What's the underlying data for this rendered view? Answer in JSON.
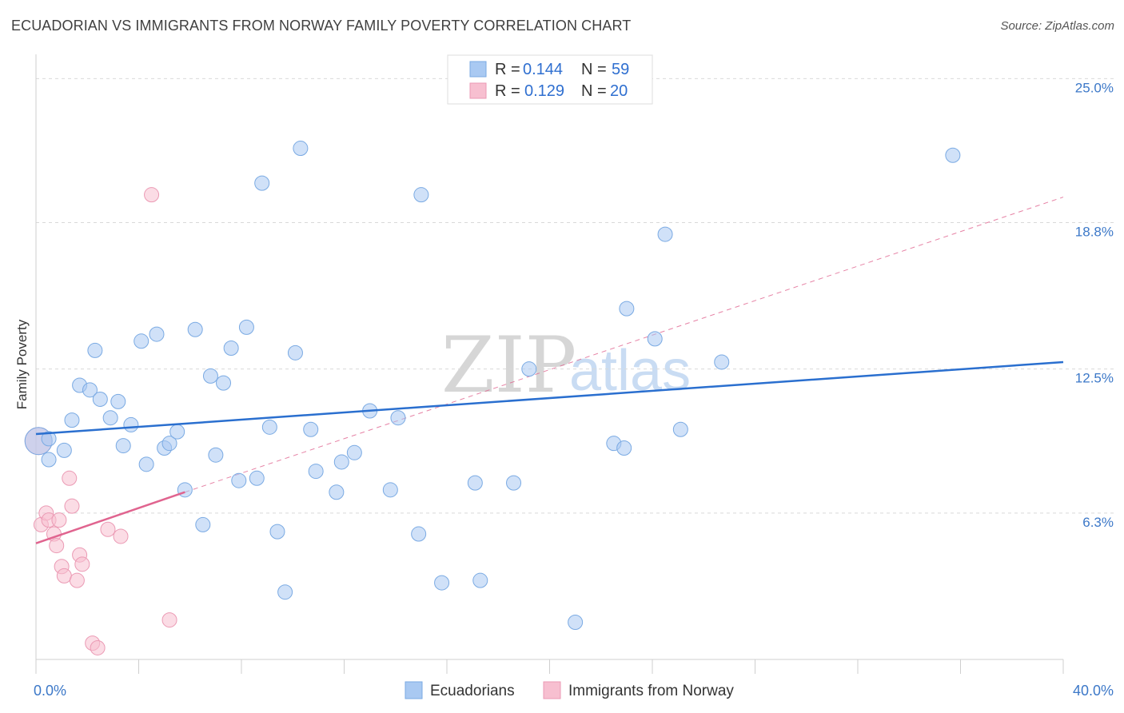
{
  "header": {
    "title": "ECUADORIAN VS IMMIGRANTS FROM NORWAY FAMILY POVERTY CORRELATION CHART",
    "source": "Source: ZipAtlas.com"
  },
  "watermark": {
    "part1": "ZIP",
    "part2": "atlas"
  },
  "legend": {
    "rows": [
      {
        "r_label": "R =",
        "r_value": "0.144",
        "n_label": "N =",
        "n_value": "59",
        "color": "#a9c9f2"
      },
      {
        "r_label": "R =",
        "r_value": "0.129",
        "n_label": "N =",
        "n_value": "20",
        "color": "#f7bfd0"
      }
    ]
  },
  "bottom_legend": {
    "items": [
      {
        "label": "Ecuadorians",
        "color": "#a9c9f2"
      },
      {
        "label": "Immigrants from Norway",
        "color": "#f7bfd0"
      }
    ]
  },
  "colors": {
    "blue_fill": "#a9c9f2",
    "blue_stroke": "#7aaae3",
    "blue_line": "#2a6fcf",
    "pink_fill": "#f7bfd0",
    "pink_stroke": "#eb9ab4",
    "pink_line": "#e0648f",
    "grid": "#d9d9d9",
    "tick_text": "#3c78c8"
  },
  "chart_data": {
    "type": "scatter",
    "title": "ECUADORIAN VS IMMIGRANTS FROM NORWAY FAMILY POVERTY CORRELATION CHART",
    "xlabel": "",
    "ylabel": "Family Poverty",
    "xlim": [
      0,
      40
    ],
    "ylim": [
      0,
      25.7
    ],
    "x_tick_labels": [
      {
        "value": 0,
        "label": "0.0%"
      },
      {
        "value": 40,
        "label": "40.0%"
      }
    ],
    "x_minor_ticks": [
      4,
      8,
      12,
      16,
      20,
      24,
      28,
      32,
      36
    ],
    "y_ticks": [
      {
        "value": 6.3,
        "label": "6.3%"
      },
      {
        "value": 12.5,
        "label": "12.5%"
      },
      {
        "value": 18.8,
        "label": "18.8%"
      },
      {
        "value": 25.0,
        "label": "25.0%"
      }
    ],
    "series": [
      {
        "name": "Ecuadorians",
        "r": 0.144,
        "n": 59,
        "trend": {
          "x": [
            0,
            40
          ],
          "y": [
            9.7,
            12.8
          ],
          "style": "solid"
        },
        "points": [
          {
            "x": 0.1,
            "y": 9.4,
            "big": true
          },
          {
            "x": 0.5,
            "y": 9.5
          },
          {
            "x": 0.5,
            "y": 8.6
          },
          {
            "x": 1.1,
            "y": 9.0
          },
          {
            "x": 1.4,
            "y": 10.3
          },
          {
            "x": 1.7,
            "y": 11.8
          },
          {
            "x": 2.1,
            "y": 11.6
          },
          {
            "x": 2.3,
            "y": 13.3
          },
          {
            "x": 2.5,
            "y": 11.2
          },
          {
            "x": 2.9,
            "y": 10.4
          },
          {
            "x": 3.2,
            "y": 11.1
          },
          {
            "x": 3.4,
            "y": 9.2
          },
          {
            "x": 3.7,
            "y": 10.1
          },
          {
            "x": 4.1,
            "y": 13.7
          },
          {
            "x": 4.3,
            "y": 8.4
          },
          {
            "x": 4.7,
            "y": 14.0
          },
          {
            "x": 5.0,
            "y": 9.1
          },
          {
            "x": 5.2,
            "y": 9.3
          },
          {
            "x": 5.5,
            "y": 9.8
          },
          {
            "x": 5.8,
            "y": 7.3
          },
          {
            "x": 6.2,
            "y": 14.2
          },
          {
            "x": 6.5,
            "y": 5.8
          },
          {
            "x": 6.8,
            "y": 12.2
          },
          {
            "x": 7.0,
            "y": 8.8
          },
          {
            "x": 7.3,
            "y": 11.9
          },
          {
            "x": 7.6,
            "y": 13.4
          },
          {
            "x": 7.9,
            "y": 7.7
          },
          {
            "x": 8.2,
            "y": 14.3
          },
          {
            "x": 8.6,
            "y": 7.8
          },
          {
            "x": 8.8,
            "y": 20.5
          },
          {
            "x": 9.1,
            "y": 10.0
          },
          {
            "x": 9.4,
            "y": 5.5
          },
          {
            "x": 9.7,
            "y": 2.9
          },
          {
            "x": 10.1,
            "y": 13.2
          },
          {
            "x": 10.3,
            "y": 22.0
          },
          {
            "x": 10.7,
            "y": 9.9
          },
          {
            "x": 10.9,
            "y": 8.1
          },
          {
            "x": 11.7,
            "y": 7.2
          },
          {
            "x": 11.9,
            "y": 8.5
          },
          {
            "x": 12.4,
            "y": 8.9
          },
          {
            "x": 13.0,
            "y": 10.7
          },
          {
            "x": 13.8,
            "y": 7.3
          },
          {
            "x": 14.1,
            "y": 10.4
          },
          {
            "x": 14.9,
            "y": 5.4
          },
          {
            "x": 15.0,
            "y": 20.0
          },
          {
            "x": 15.8,
            "y": 3.3
          },
          {
            "x": 17.1,
            "y": 7.6
          },
          {
            "x": 17.3,
            "y": 3.4
          },
          {
            "x": 18.6,
            "y": 7.6
          },
          {
            "x": 19.2,
            "y": 12.5
          },
          {
            "x": 21.0,
            "y": 1.6
          },
          {
            "x": 22.5,
            "y": 9.3
          },
          {
            "x": 22.9,
            "y": 9.1
          },
          {
            "x": 23.0,
            "y": 15.1
          },
          {
            "x": 24.1,
            "y": 13.8
          },
          {
            "x": 24.5,
            "y": 18.3
          },
          {
            "x": 25.1,
            "y": 9.9
          },
          {
            "x": 26.7,
            "y": 12.8
          },
          {
            "x": 35.7,
            "y": 21.7
          }
        ]
      },
      {
        "name": "Immigrants from Norway",
        "r": 0.129,
        "n": 20,
        "trend": {
          "x": [
            0,
            5.8
          ],
          "y": [
            5.0,
            7.2
          ],
          "style": "solid",
          "extended_x": [
            5.8,
            40
          ],
          "extended_y": [
            7.2,
            19.9
          ],
          "extended_style": "dashed"
        },
        "points": [
          {
            "x": 0.1,
            "y": 9.4,
            "big": true
          },
          {
            "x": 0.2,
            "y": 5.8
          },
          {
            "x": 0.4,
            "y": 6.3
          },
          {
            "x": 0.5,
            "y": 6.0
          },
          {
            "x": 0.7,
            "y": 5.4
          },
          {
            "x": 0.8,
            "y": 4.9
          },
          {
            "x": 0.9,
            "y": 6.0
          },
          {
            "x": 1.0,
            "y": 4.0
          },
          {
            "x": 1.1,
            "y": 3.6
          },
          {
            "x": 1.3,
            "y": 7.8
          },
          {
            "x": 1.4,
            "y": 6.6
          },
          {
            "x": 1.6,
            "y": 3.4
          },
          {
            "x": 1.7,
            "y": 4.5
          },
          {
            "x": 1.8,
            "y": 4.1
          },
          {
            "x": 2.2,
            "y": 0.7
          },
          {
            "x": 2.4,
            "y": 0.5
          },
          {
            "x": 2.8,
            "y": 5.6
          },
          {
            "x": 3.3,
            "y": 5.3
          },
          {
            "x": 4.5,
            "y": 20.0
          },
          {
            "x": 5.2,
            "y": 1.7
          }
        ]
      }
    ],
    "legend_position": "top-center",
    "grid": true
  }
}
